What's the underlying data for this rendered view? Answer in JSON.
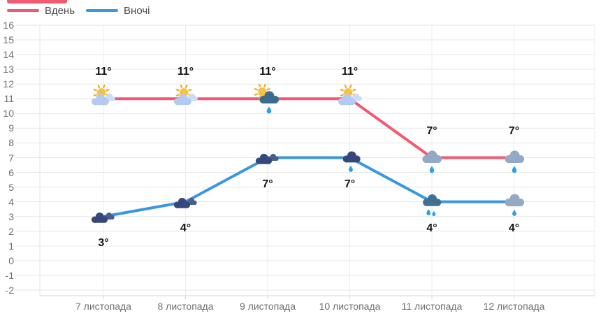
{
  "page": {
    "background": "#ffffff"
  },
  "top_fragment": {
    "color": "#f25972"
  },
  "legend": {
    "items": [
      {
        "label": "Вдень",
        "color": "#f25972"
      },
      {
        "label": "Вночі",
        "color": "#3a97de"
      }
    ]
  },
  "chart_data": {
    "type": "line",
    "title": "",
    "xlabel": "",
    "ylabel": "",
    "categories": [
      "7 листопада",
      "8 листопада",
      "9 листопада",
      "10 листопада",
      "11 листопада",
      "12 листопада"
    ],
    "series": [
      {
        "name": "Вдень",
        "color": "#f25972",
        "values": [
          11,
          11,
          11,
          11,
          7,
          7
        ],
        "point_labels": [
          "11°",
          "11°",
          "11°",
          "11°",
          "7°",
          "7°"
        ],
        "label_position": "above",
        "icons": [
          "sun-cloud",
          "sun-cloud",
          "sun-rain-cloud",
          "sun-cloud",
          "rain-cloud-gray",
          "rain-cloud-gray"
        ]
      },
      {
        "name": "Вночі",
        "color": "#3a97de",
        "values": [
          3,
          4,
          7,
          7,
          4,
          4
        ],
        "point_labels": [
          "3°",
          "4°",
          "7°",
          "7°",
          "4°",
          "4°"
        ],
        "label_position": "below",
        "icons": [
          "moon-clouds",
          "moon-clouds",
          "moon-clouds",
          "moon-cloud-rain",
          "rain-cloud-teal-2drops",
          "rain-cloud-gray-night"
        ]
      }
    ],
    "ylim": [
      -2,
      16
    ],
    "yticks": [
      16,
      15,
      14,
      13,
      12,
      11,
      10,
      9,
      8,
      7,
      6,
      5,
      4,
      3,
      2,
      1,
      0,
      -1,
      -2
    ],
    "grid": true,
    "legend_position": "top-left"
  },
  "icon_colors": {
    "sun": "#f6c243",
    "sun_rays": "#f0ad2d",
    "moon": "#f1c143",
    "cloud_light": "#b3cbf2",
    "cloud_lighter": "#ccdcf8",
    "cloud_dark_day": "#3d6b8c",
    "cloud_gray": "#93a9c4",
    "cloud_navy": "#36477c",
    "cloud_navy_light": "#4a5b8e",
    "cloud_teal": "#3f7291",
    "raindrop": "#29a2ea"
  },
  "grid_colors": {
    "gridline": "#e6e6e6",
    "axis_line": "#d6d6d6",
    "vgridline": "#ececec"
  }
}
